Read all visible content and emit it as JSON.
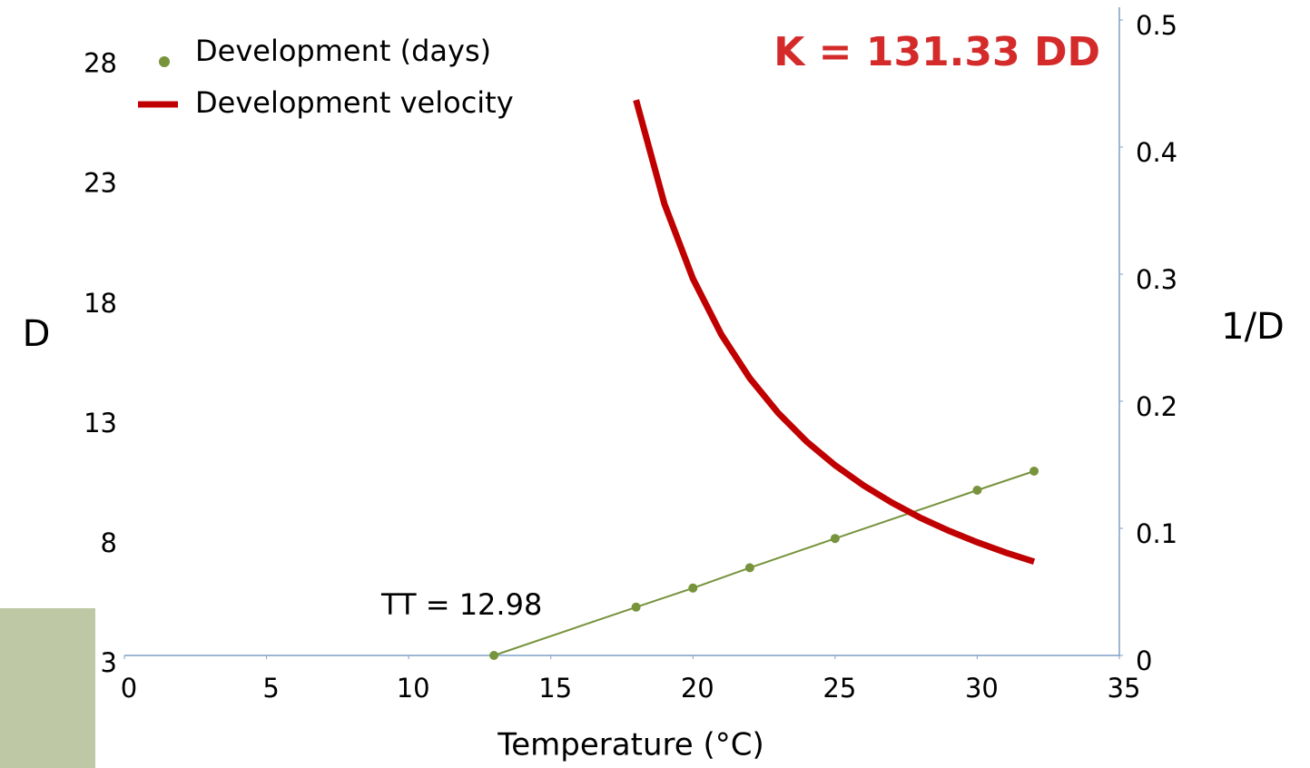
{
  "chart_data": {
    "type": "line",
    "xlabel": "Temperature (°C)",
    "ylabel": "D",
    "y2label": "1/D",
    "annotations": [
      "K = 131.33 DD",
      "TT = 12.98"
    ],
    "xlim": [
      0,
      35
    ],
    "xticks": [
      0,
      5,
      10,
      15,
      20,
      25,
      30,
      35
    ],
    "ylim": [
      3,
      29.5
    ],
    "yticks": [
      3,
      8,
      13,
      18,
      23,
      28
    ],
    "y2lim": [
      0,
      0.5
    ],
    "y2ticks": [
      0,
      0.1,
      0.2,
      0.3,
      0.4,
      0.5
    ],
    "grid": false,
    "legend": "upper left",
    "series": [
      {
        "name": "Development (days)",
        "color": "#77933c",
        "axis": "y2",
        "marker": "circle",
        "x": [
          13,
          18,
          20,
          22,
          25,
          30,
          32
        ],
        "values": [
          0,
          0.038,
          0.053,
          0.069,
          0.092,
          0.13,
          0.145
        ]
      },
      {
        "name": "Development velocity",
        "color": "#c00000",
        "marker": "none",
        "x": [
          18,
          19,
          20,
          21,
          22,
          23,
          24,
          25,
          26,
          27,
          28,
          29,
          30,
          31,
          32
        ],
        "values": [
          26.16,
          21.82,
          18.71,
          16.38,
          14.56,
          13.11,
          11.92,
          10.93,
          10.09,
          9.37,
          8.74,
          8.2,
          7.72,
          7.29,
          6.91
        ]
      }
    ]
  }
}
